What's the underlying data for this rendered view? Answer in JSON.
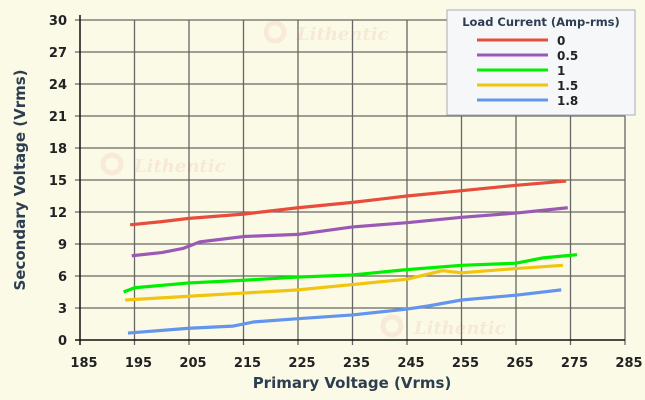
{
  "chart_data": {
    "type": "line",
    "title": "",
    "xlabel": "Primary Voltage (Vrms)",
    "ylabel": "Secondary Voltage (Vrms)",
    "xlim": [
      185,
      285
    ],
    "ylim": [
      0,
      30
    ],
    "xticks": [
      185,
      195,
      205,
      215,
      225,
      235,
      245,
      255,
      265,
      275,
      285
    ],
    "yticks": [
      0,
      3,
      6,
      9,
      12,
      15,
      18,
      21,
      24,
      27,
      30
    ],
    "grid": true,
    "legend": {
      "title": "Load Current (Amp-rms)",
      "placement": "top-right"
    },
    "watermark": "Lithentic",
    "series": [
      {
        "name": "0",
        "color": "#e74c3c",
        "points": [
          [
            194.2,
            10.8
          ],
          [
            200,
            11.1
          ],
          [
            205,
            11.4
          ],
          [
            215,
            11.8
          ],
          [
            225,
            12.4
          ],
          [
            235,
            12.9
          ],
          [
            245,
            13.5
          ],
          [
            255,
            14.0
          ],
          [
            265,
            14.5
          ],
          [
            274.2,
            14.9
          ]
        ]
      },
      {
        "name": "0.5",
        "color": "#9b59b6",
        "points": [
          [
            194.5,
            7.9
          ],
          [
            200,
            8.2
          ],
          [
            204,
            8.6
          ],
          [
            207,
            9.2
          ],
          [
            215,
            9.7
          ],
          [
            225,
            9.9
          ],
          [
            235,
            10.6
          ],
          [
            245,
            11.0
          ],
          [
            255,
            11.5
          ],
          [
            265,
            11.9
          ],
          [
            274.5,
            12.4
          ]
        ]
      },
      {
        "name": "1",
        "color": "#00ee00",
        "points": [
          [
            193,
            4.5
          ],
          [
            195,
            4.9
          ],
          [
            205,
            5.35
          ],
          [
            215,
            5.6
          ],
          [
            225,
            5.9
          ],
          [
            235,
            6.1
          ],
          [
            245,
            6.6
          ],
          [
            255,
            7.0
          ],
          [
            265,
            7.2
          ],
          [
            270,
            7.7
          ],
          [
            276.2,
            8.0
          ]
        ]
      },
      {
        "name": "1.5",
        "color": "#f1c40f",
        "points": [
          [
            193.3,
            3.75
          ],
          [
            205,
            4.1
          ],
          [
            215,
            4.4
          ],
          [
            225,
            4.7
          ],
          [
            235,
            5.2
          ],
          [
            245,
            5.7
          ],
          [
            251.5,
            6.5
          ],
          [
            255,
            6.3
          ],
          [
            265,
            6.7
          ],
          [
            273.6,
            7.0
          ]
        ]
      },
      {
        "name": "1.8",
        "color": "#6495ed",
        "points": [
          [
            193.8,
            0.65
          ],
          [
            205,
            1.1
          ],
          [
            213,
            1.3
          ],
          [
            217,
            1.7
          ],
          [
            225,
            2.0
          ],
          [
            235,
            2.35
          ],
          [
            245,
            2.9
          ],
          [
            249,
            3.2
          ],
          [
            255,
            3.75
          ],
          [
            265,
            4.2
          ],
          [
            273.3,
            4.7
          ]
        ]
      }
    ]
  }
}
